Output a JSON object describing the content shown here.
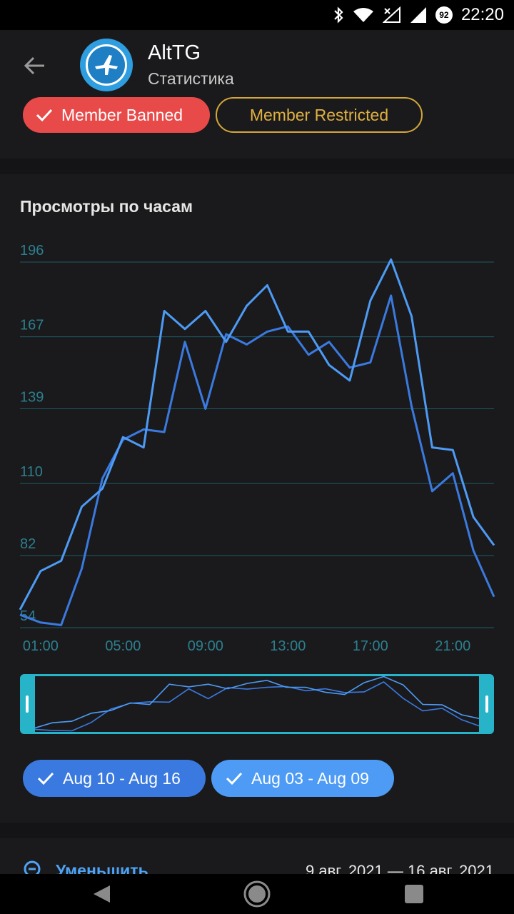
{
  "status_bar": {
    "time": "22:20",
    "battery": "92",
    "icons": [
      "bluetooth-icon",
      "wifi-icon",
      "no-signal-icon",
      "signal-icon",
      "battery-icon"
    ]
  },
  "app_bar": {
    "title": "AltTG",
    "subtitle": "Статистика"
  },
  "filter_chips": [
    {
      "label": "Member Banned",
      "color": "#e84a4a",
      "checked": true
    },
    {
      "label": "Member Restricted",
      "color": "#d4a73a",
      "checked": false
    }
  ],
  "chart_data": {
    "type": "line",
    "title": "Просмотры по часам",
    "y_ticks": [
      54,
      82,
      110,
      139,
      167,
      196
    ],
    "ylim": [
      54,
      196
    ],
    "x_ticks": [
      "01:00",
      "05:00",
      "09:00",
      "13:00",
      "17:00",
      "21:00"
    ],
    "x": [
      "00:00",
      "01:00",
      "02:00",
      "03:00",
      "04:00",
      "05:00",
      "06:00",
      "07:00",
      "08:00",
      "09:00",
      "10:00",
      "11:00",
      "12:00",
      "13:00",
      "14:00",
      "15:00",
      "16:00",
      "17:00",
      "18:00",
      "19:00",
      "20:00",
      "21:00",
      "22:00",
      "23:00"
    ],
    "grid": true,
    "series": [
      {
        "name": "Aug 10 - Aug 16",
        "color": "#3a7ae0",
        "values": [
          59,
          56,
          55,
          77,
          112,
          127,
          131,
          130,
          165,
          139,
          168,
          164,
          169,
          171,
          160,
          165,
          155,
          157,
          183,
          140,
          107,
          114,
          84,
          66
        ]
      },
      {
        "name": "Aug 03 - Aug 09",
        "color": "#4d9bf5",
        "values": [
          61,
          76,
          80,
          101,
          108,
          128,
          124,
          177,
          170,
          177,
          165,
          179,
          187,
          169,
          169,
          156,
          150,
          181,
          197,
          175,
          124,
          123,
          97,
          86
        ]
      }
    ]
  },
  "legend": [
    {
      "label": "Aug 10 - Aug 16",
      "color": "#3a7ae0"
    },
    {
      "label": "Aug 03 - Aug 09",
      "color": "#4d9bf5"
    }
  ],
  "bottom": {
    "zoom_label": "Уменьшить",
    "date_range": "9 авг. 2021 — 16 авг. 2021"
  }
}
